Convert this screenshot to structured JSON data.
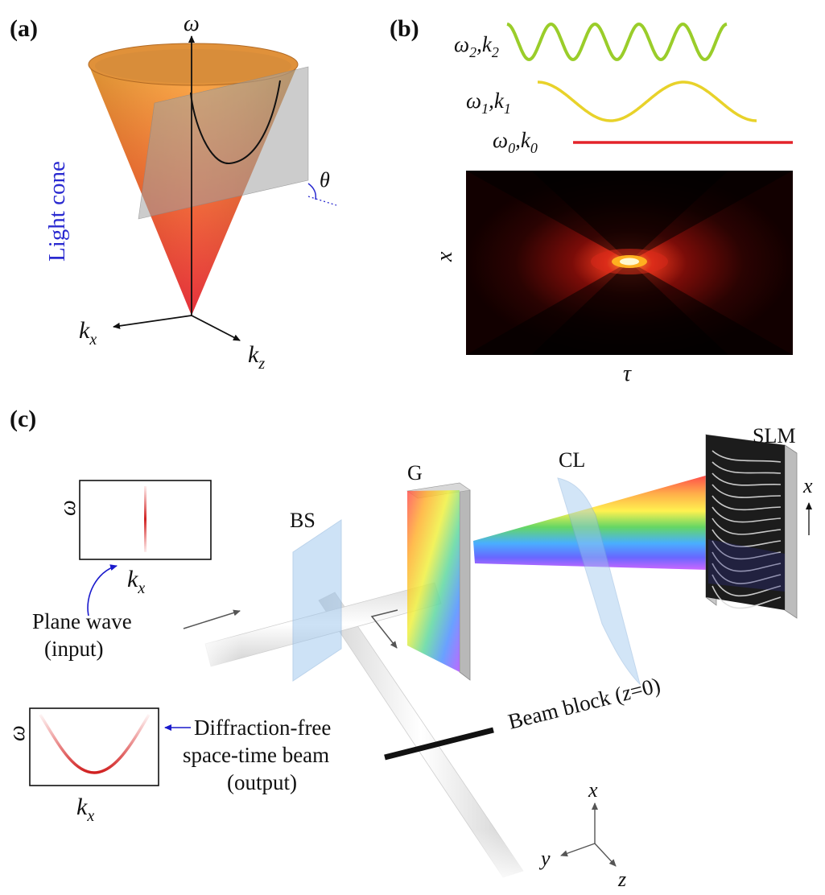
{
  "panel_a": {
    "label": "(a)",
    "axis_omega": "ω",
    "axis_kx": "k",
    "axis_kx_sub": "x",
    "axis_kz": "k",
    "axis_kz_sub": "z",
    "theta": "θ",
    "light_cone_label": "Light cone",
    "colors": {
      "cone_top": "#f7a035",
      "cone_bottom": "#e8232a",
      "plane": "#9e9e9e",
      "light_cone_text": "#2a2ad0"
    }
  },
  "panel_b": {
    "label": "(b)",
    "waves": [
      {
        "omega": "ω",
        "sub_omega": "2",
        "k": "k",
        "sub_k": "2",
        "color": "#9acd2a"
      },
      {
        "omega": "ω",
        "sub_omega": "1",
        "k": "k",
        "sub_k": "1",
        "color": "#e8d22a"
      },
      {
        "omega": "ω",
        "sub_omega": "0",
        "k": "k",
        "sub_k": "0",
        "color": "#e4232a"
      }
    ],
    "axis_x": "x",
    "axis_tau": "τ"
  },
  "panel_c": {
    "label": "(c)",
    "components": {
      "bs": "BS",
      "g": "G",
      "cl": "CL",
      "slm": "SLM",
      "slm_axis": "x"
    },
    "input_inset": {
      "ylabel": "ω",
      "xlabel": "k",
      "xlabel_sub": "x"
    },
    "output_inset": {
      "ylabel": "ω",
      "xlabel": "k",
      "xlabel_sub": "x"
    },
    "input_text": {
      "line1": "Plane wave",
      "line2": "(input)"
    },
    "output_text": {
      "line1": "Diffraction-free",
      "line2": "space-time beam",
      "line3": "(output)"
    },
    "beam_block": {
      "prefix": "Beam block (",
      "var": "z",
      "suffix": "=0)"
    },
    "axes": {
      "x": "x",
      "y": "y",
      "z": "z"
    },
    "colors": {
      "arrow_blue": "#1a1acc",
      "rainbow": [
        "#ff0000",
        "#ff9900",
        "#ffee00",
        "#33cc33",
        "#0099ff",
        "#3333ff",
        "#cc33ff"
      ]
    }
  }
}
